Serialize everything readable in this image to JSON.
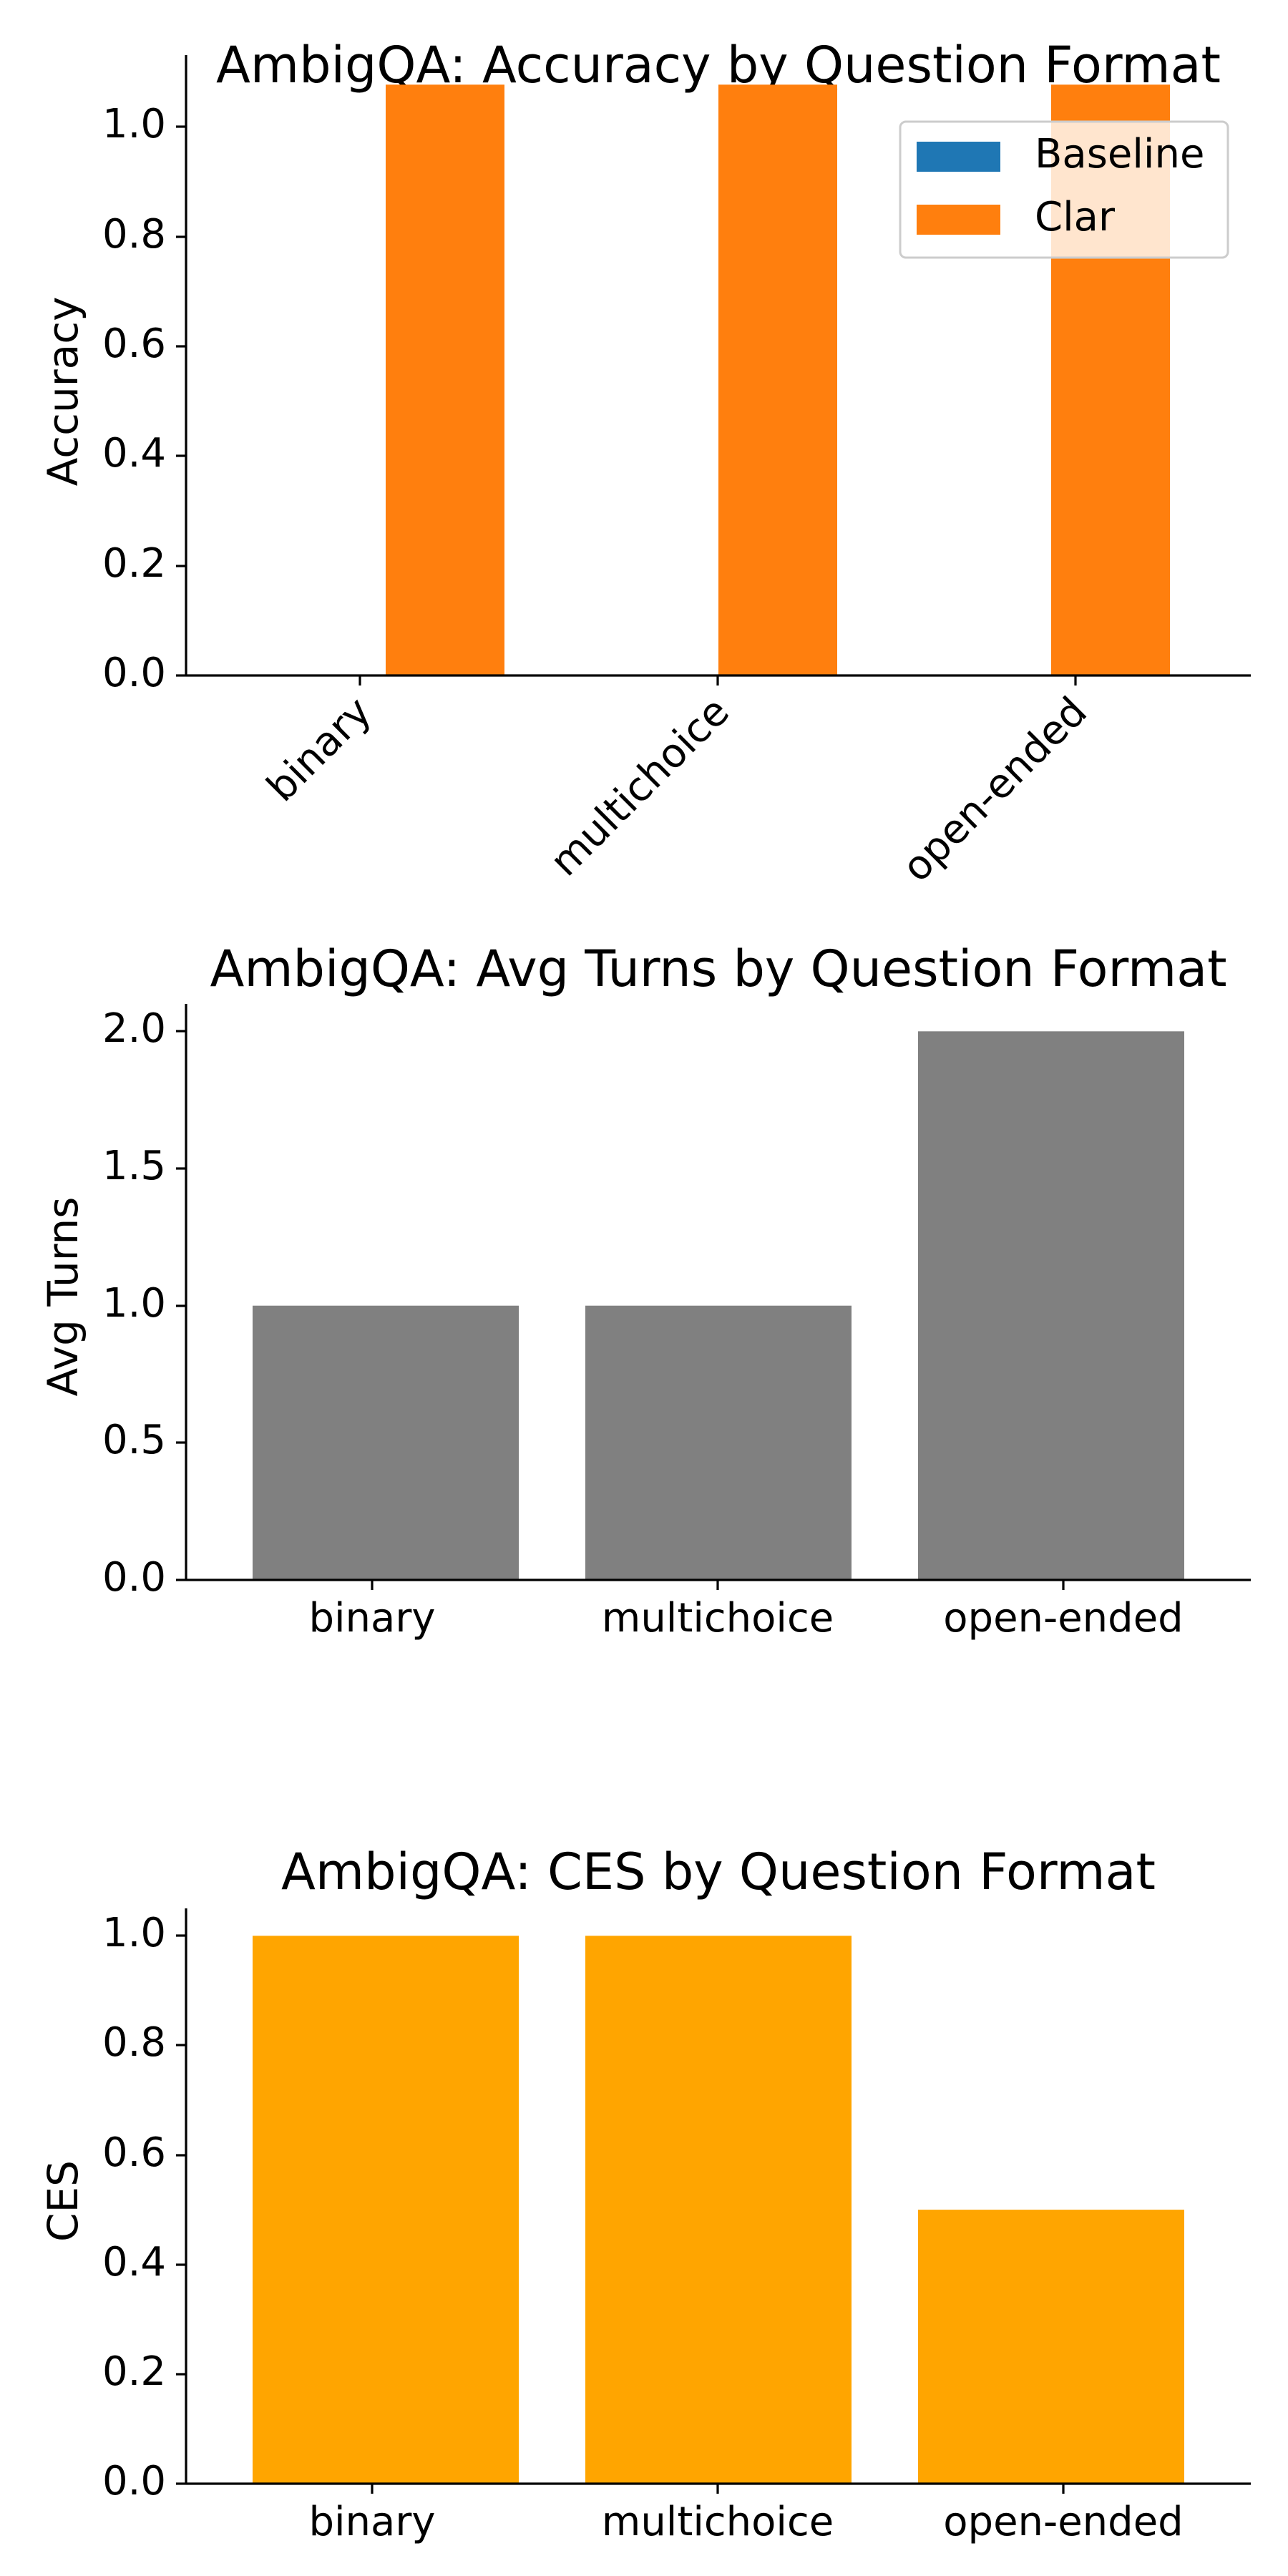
{
  "chart_data": [
    {
      "type": "bar",
      "title": "AmbigQA: Accuracy by Question Format",
      "xlabel": "",
      "ylabel": "Accuracy",
      "categories": [
        "binary",
        "multichoice",
        "open-ended"
      ],
      "series": [
        {
          "name": "Baseline",
          "values": [
            0.0,
            0.0,
            0.0
          ],
          "color": "#1f77b4"
        },
        {
          "name": "Clar",
          "values": [
            1.0,
            1.0,
            1.0
          ],
          "color": "#ff7f0e"
        }
      ],
      "ylim": [
        0.0,
        1.05
      ],
      "yticks": [
        "0.0",
        "0.2",
        "0.4",
        "0.6",
        "0.8",
        "1.0"
      ],
      "xtick_rotation": 45,
      "legend_position": "top-right",
      "grid": false
    },
    {
      "type": "bar",
      "title": "AmbigQA: Avg Turns by Question Format",
      "xlabel": "",
      "ylabel": "Avg Turns",
      "categories": [
        "binary",
        "multichoice",
        "open-ended"
      ],
      "series": [
        {
          "values": [
            1.0,
            1.0,
            2.0
          ],
          "color": "#808080"
        }
      ],
      "ylim": [
        0.0,
        2.1
      ],
      "yticks": [
        "0.0",
        "0.5",
        "1.0",
        "1.5",
        "2.0"
      ],
      "grid": false
    },
    {
      "type": "bar",
      "title": "AmbigQA: CES by Question Format",
      "xlabel": "",
      "ylabel": "CES",
      "categories": [
        "binary",
        "multichoice",
        "open-ended"
      ],
      "series": [
        {
          "values": [
            1.0,
            1.0,
            0.5
          ],
          "color": "#ffa500"
        }
      ],
      "ylim": [
        0.0,
        1.05
      ],
      "yticks": [
        "0.0",
        "0.2",
        "0.4",
        "0.6",
        "0.8",
        "1.0"
      ],
      "grid": false
    }
  ]
}
